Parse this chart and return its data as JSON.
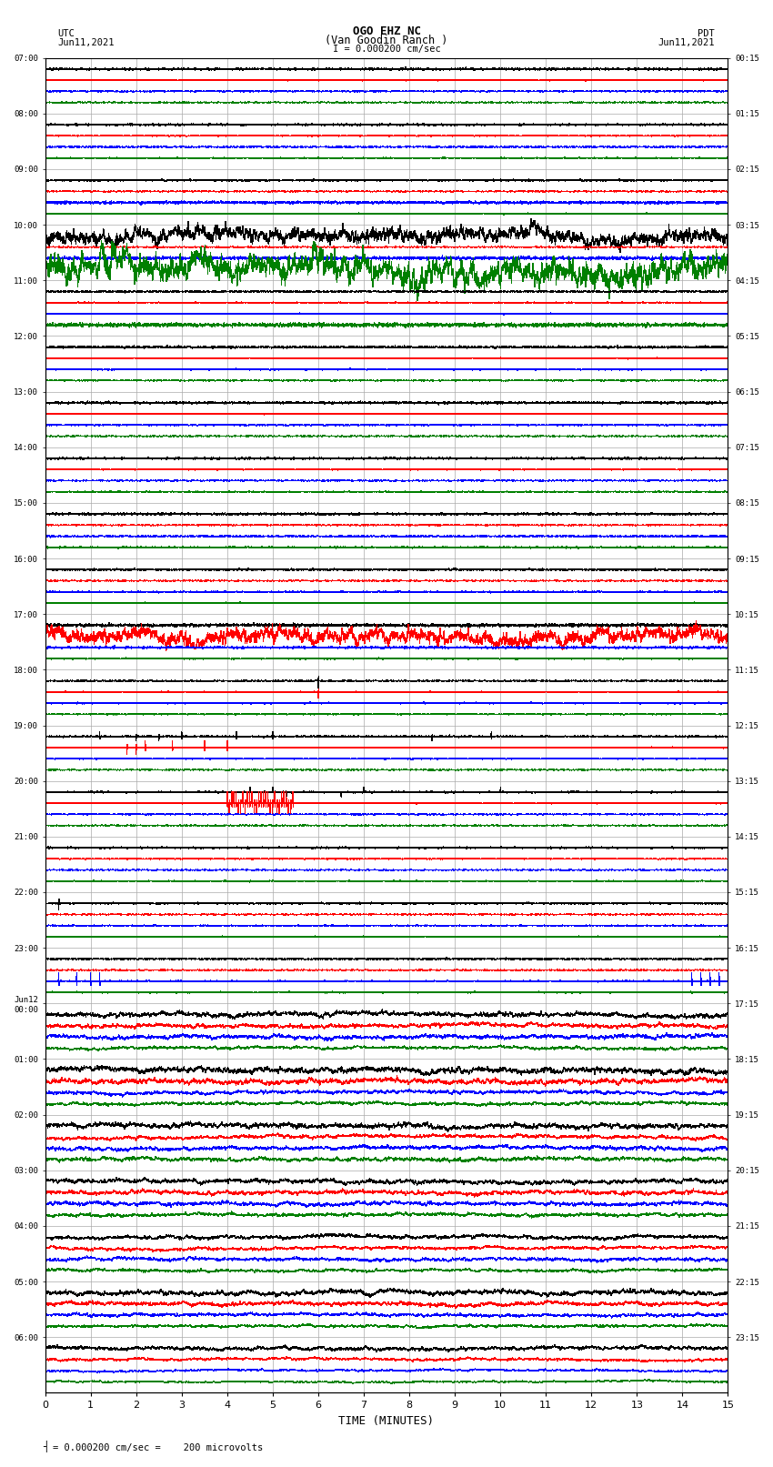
{
  "title_line1": "OGO EHZ NC",
  "title_line2": "(Van Goodin Ranch )",
  "title_scale": "I = 0.000200 cm/sec",
  "left_label_top": "UTC",
  "left_label_date": "Jun11,2021",
  "right_label_top": "PDT",
  "right_label_date": "Jun11,2021",
  "bottom_label": "TIME (MINUTES)",
  "footnote": "= 0.000200 cm/sec =    200 microvolts",
  "xlabel_times": [
    0,
    1,
    2,
    3,
    4,
    5,
    6,
    7,
    8,
    9,
    10,
    11,
    12,
    13,
    14,
    15
  ],
  "utc_times": [
    "07:00",
    "08:00",
    "09:00",
    "10:00",
    "11:00",
    "12:00",
    "13:00",
    "14:00",
    "15:00",
    "16:00",
    "17:00",
    "18:00",
    "19:00",
    "20:00",
    "21:00",
    "22:00",
    "23:00",
    "Jun12\n00:00",
    "01:00",
    "02:00",
    "03:00",
    "04:00",
    "05:00",
    "06:00"
  ],
  "pdt_times": [
    "00:15",
    "01:15",
    "02:15",
    "03:15",
    "04:15",
    "05:15",
    "06:15",
    "07:15",
    "08:15",
    "09:15",
    "10:15",
    "11:15",
    "12:15",
    "13:15",
    "14:15",
    "15:15",
    "16:15",
    "17:15",
    "18:15",
    "19:15",
    "20:15",
    "21:15",
    "22:15",
    "23:15"
  ],
  "n_rows": 24,
  "n_traces_per_row": 4,
  "colors": [
    "black",
    "red",
    "blue",
    "green"
  ],
  "bg_color": "#ffffff",
  "grid_color": "#aaaaaa",
  "figsize": [
    8.5,
    16.13
  ],
  "dpi": 100
}
